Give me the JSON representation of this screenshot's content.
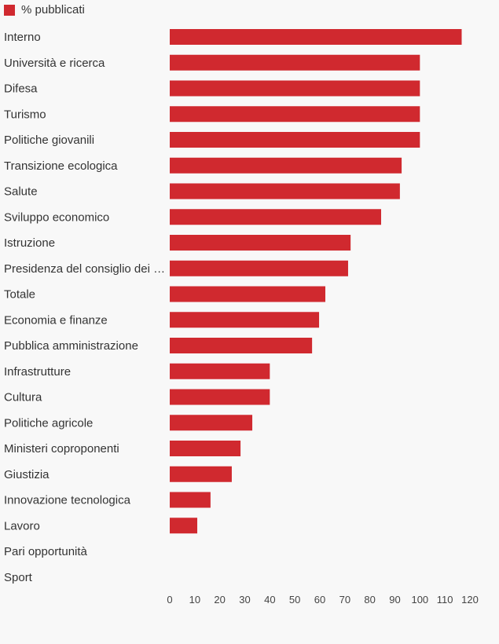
{
  "chart_data": {
    "type": "bar",
    "orientation": "horizontal",
    "legend": [
      "% pubblicati"
    ],
    "legend_position": "top-left",
    "color": "#d0292f",
    "categories": [
      "Interno",
      "Università e ricerca",
      "Difesa",
      "Turismo",
      "Politiche giovanili",
      "Transizione ecologica",
      "Salute",
      "Sviluppo economico",
      "Istruzione",
      "Presidenza del consiglio dei …",
      "Totale",
      "Economia e finanze",
      "Pubblica amministrazione",
      "Infrastrutture",
      "Cultura",
      "Politiche agricole",
      "Ministeri coproponenti",
      "Giustizia",
      "Innovazione tecnologica",
      "Lavoro",
      "Pari opportunità",
      "Sport"
    ],
    "series": [
      {
        "name": "% pubblicati",
        "values": [
          116.7,
          100,
          100,
          100,
          100,
          92.7,
          92,
          84.5,
          72.3,
          71.3,
          62.2,
          59.7,
          56.9,
          40,
          40,
          33,
          28.3,
          24.8,
          16.3,
          11,
          0,
          0
        ]
      }
    ],
    "xlim": [
      0,
      120
    ],
    "xticks": [
      "0",
      "10",
      "20",
      "30",
      "40",
      "50",
      "60",
      "70",
      "80",
      "90",
      "100",
      "110",
      "120"
    ],
    "grid": false
  }
}
